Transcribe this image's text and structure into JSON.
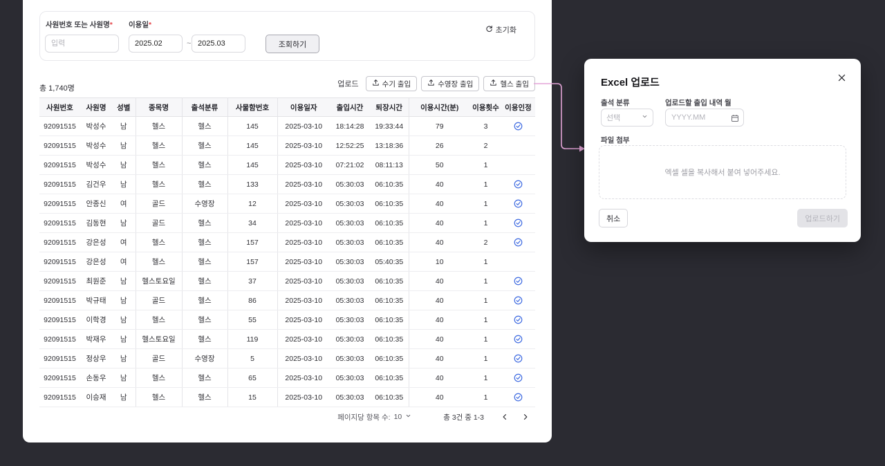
{
  "colors": {
    "background": "#2b2b32",
    "accent_check": "#3f6be1",
    "connector_arrow": "#e3a4d7",
    "required_asterisk": "#e5484d"
  },
  "filter": {
    "name_label": "사원번호 또는 사원명",
    "required_mark": "*",
    "name_placeholder": "입력",
    "date_label": "이용일",
    "date_from": "2025.02",
    "date_to": "2025.03",
    "date_separator": "~",
    "search_button": "조회하기",
    "reset_button": "초기화"
  },
  "toolbar": {
    "total_count": "총 1,740명",
    "upload_label": "업로드",
    "upload_buttons": [
      {
        "label": "수기 출입"
      },
      {
        "label": "수영장 출입"
      },
      {
        "label": "헬스 출입"
      }
    ]
  },
  "table": {
    "headers": [
      "사원번호",
      "사원명",
      "성별",
      "종목명",
      "출석분류",
      "사물함번호",
      "이용일자",
      "출입시간",
      "퇴장시간",
      "이용시간(분)",
      "이용횟수",
      "이용인정"
    ],
    "rows": [
      {
        "cells": [
          "92091515",
          "박성수",
          "남",
          "헬스",
          "헬스",
          "145",
          "2025-03-10",
          "18:14:28",
          "19:33:44",
          "79",
          "3"
        ],
        "approved": true
      },
      {
        "cells": [
          "92091515",
          "박성수",
          "남",
          "헬스",
          "헬스",
          "145",
          "2025-03-10",
          "12:52:25",
          "13:18:36",
          "26",
          "2"
        ],
        "approved": false
      },
      {
        "cells": [
          "92091515",
          "박성수",
          "남",
          "헬스",
          "헬스",
          "145",
          "2025-03-10",
          "07:21:02",
          "08:11:13",
          "50",
          "1"
        ],
        "approved": false
      },
      {
        "cells": [
          "92091515",
          "김건우",
          "남",
          "헬스",
          "헬스",
          "133",
          "2025-03-10",
          "05:30:03",
          "06:10:35",
          "40",
          "1"
        ],
        "approved": true
      },
      {
        "cells": [
          "92091515",
          "안종신",
          "여",
          "골드",
          "수영장",
          "12",
          "2025-03-10",
          "05:30:03",
          "06:10:35",
          "40",
          "1"
        ],
        "approved": true
      },
      {
        "cells": [
          "92091515",
          "김동현",
          "남",
          "골드",
          "헬스",
          "34",
          "2025-03-10",
          "05:30:03",
          "06:10:35",
          "40",
          "1"
        ],
        "approved": true
      },
      {
        "cells": [
          "92091515",
          "강은성",
          "여",
          "헬스",
          "헬스",
          "157",
          "2025-03-10",
          "05:30:03",
          "06:10:35",
          "40",
          "2"
        ],
        "approved": true
      },
      {
        "cells": [
          "92091515",
          "강은성",
          "여",
          "헬스",
          "헬스",
          "157",
          "2025-03-10",
          "05:30:03",
          "05:40:35",
          "10",
          "1"
        ],
        "approved": false
      },
      {
        "cells": [
          "92091515",
          "최원준",
          "남",
          "헬스토요일",
          "헬스",
          "37",
          "2025-03-10",
          "05:30:03",
          "06:10:35",
          "40",
          "1"
        ],
        "approved": true
      },
      {
        "cells": [
          "92091515",
          "박규태",
          "남",
          "골드",
          "헬스",
          "86",
          "2025-03-10",
          "05:30:03",
          "06:10:35",
          "40",
          "1"
        ],
        "approved": true
      },
      {
        "cells": [
          "92091515",
          "이학경",
          "남",
          "헬스",
          "헬스",
          "55",
          "2025-03-10",
          "05:30:03",
          "06:10:35",
          "40",
          "1"
        ],
        "approved": true
      },
      {
        "cells": [
          "92091515",
          "박재우",
          "남",
          "헬스토요일",
          "헬스",
          "119",
          "2025-03-10",
          "05:30:03",
          "06:10:35",
          "40",
          "1"
        ],
        "approved": true
      },
      {
        "cells": [
          "92091515",
          "정상우",
          "남",
          "골드",
          "수영장",
          "5",
          "2025-03-10",
          "05:30:03",
          "06:10:35",
          "40",
          "1"
        ],
        "approved": true
      },
      {
        "cells": [
          "92091515",
          "손동우",
          "남",
          "헬스",
          "헬스",
          "65",
          "2025-03-10",
          "05:30:03",
          "06:10:35",
          "40",
          "1"
        ],
        "approved": true
      },
      {
        "cells": [
          "92091515",
          "이승재",
          "남",
          "헬스",
          "헬스",
          "15",
          "2025-03-10",
          "05:30:03",
          "06:10:35",
          "40",
          "1"
        ],
        "approved": true
      }
    ]
  },
  "pagination": {
    "per_page_label": "페이지당 항목 수:",
    "per_page_value": "10",
    "range_text": "총 3건 중 1-3"
  },
  "modal": {
    "title": "Excel 업로드",
    "attendance_label": "출석 분류",
    "attendance_placeholder": "선택",
    "month_label": "업로드할 출입 내역 월",
    "month_placeholder": "YYYY.MM",
    "file_label": "파일 첨부",
    "paste_hint": "엑셀 셀을 복사해서 붙여 넣어주세요.",
    "cancel_button": "취소",
    "upload_button": "업로드하기"
  }
}
